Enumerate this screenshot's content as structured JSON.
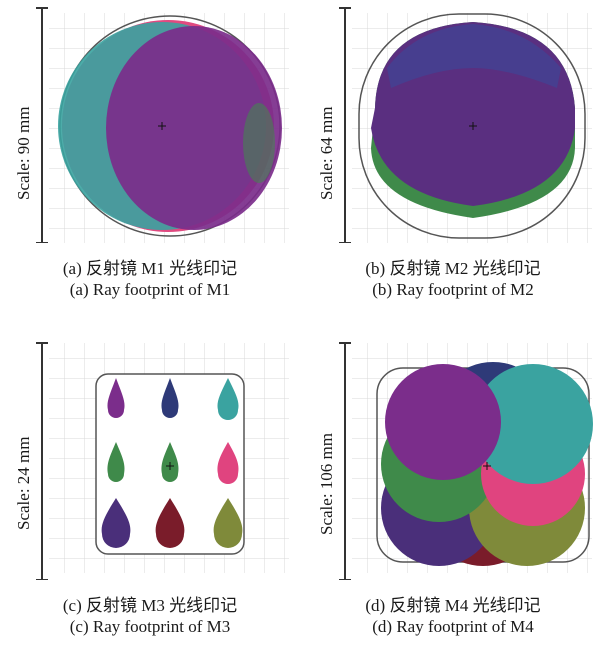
{
  "panels": [
    {
      "id": "a",
      "scale_label": "Scale: 90 mm",
      "caption_cn": "(a) 反射镜 M1 光线印记",
      "caption_en": "(a) Ray footprint of M1"
    },
    {
      "id": "b",
      "scale_label": "Scale: 64 mm",
      "caption_cn": "(b) 反射镜 M2 光线印记",
      "caption_en": "(b) Ray footprint of M2"
    },
    {
      "id": "c",
      "scale_label": "Scale: 24 mm",
      "caption_cn": "(c) 反射镜 M3 光线印记",
      "caption_en": "(c) Ray footprint of M3"
    },
    {
      "id": "d",
      "scale_label": "Scale: 106 mm",
      "caption_cn": "(d) 反射镜 M4 光线印记",
      "caption_en": "(d) Ray footprint of M4"
    }
  ],
  "colors": {
    "purple": "#7b2d8b",
    "teal": "#3aa3a0",
    "navy": "#2e3a78",
    "green": "#3f8a4a",
    "magenta": "#e0447f",
    "indigo": "#4a2f7a",
    "maroon": "#7a1c2a",
    "olive": "#7f8a3a",
    "grid": "#d9d9d9",
    "outline": "#555555"
  }
}
